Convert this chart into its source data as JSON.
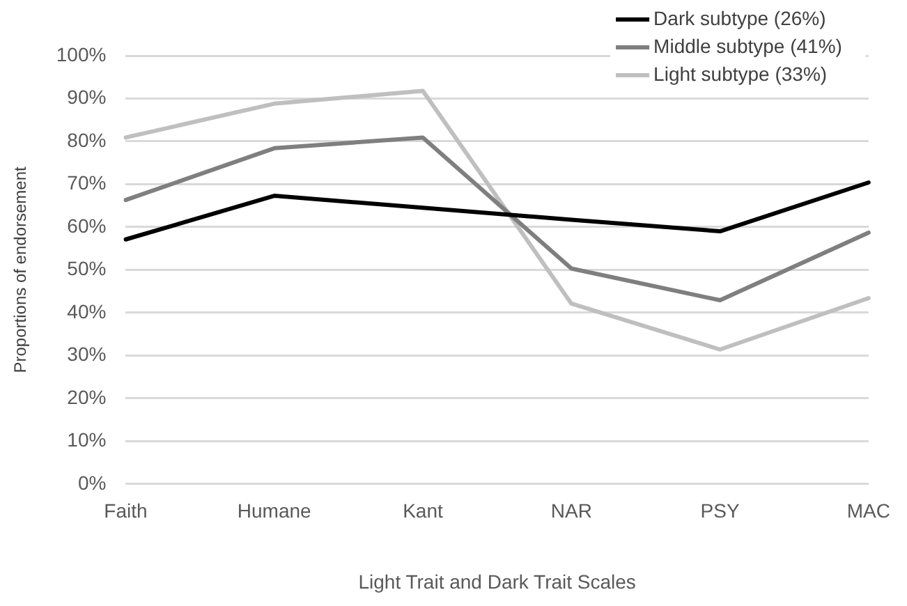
{
  "chart_data": {
    "type": "line",
    "xlabel": "Light Trait and Dark Trait Scales",
    "ylabel": "Proportions of endorsement",
    "categories": [
      "Faith",
      "Humane",
      "Kant",
      "NAR",
      "PSY",
      "MAC"
    ],
    "series": [
      {
        "name": "Dark subtype (26%)",
        "color": "#000000",
        "values": [
          57.1,
          67.3,
          64.5,
          61.7,
          59.0,
          70.4
        ]
      },
      {
        "name": "Middle subtype (41%)",
        "color": "#7f7f7f",
        "values": [
          66.3,
          78.4,
          80.9,
          50.3,
          42.9,
          58.7
        ]
      },
      {
        "name": "Light subtype (33%)",
        "color": "#bfbfbf",
        "values": [
          80.9,
          88.8,
          91.8,
          42.1,
          31.4,
          43.4
        ]
      }
    ],
    "ylim": [
      0,
      100
    ],
    "yticks": [
      {
        "value": 0,
        "label": "0%"
      },
      {
        "value": 10,
        "label": "10%"
      },
      {
        "value": 20,
        "label": "20%"
      },
      {
        "value": 30,
        "label": "30%"
      },
      {
        "value": 40,
        "label": "40%"
      },
      {
        "value": 50,
        "label": "50%"
      },
      {
        "value": 60,
        "label": "60%"
      },
      {
        "value": 70,
        "label": "70%"
      },
      {
        "value": 80,
        "label": "80%"
      },
      {
        "value": 90,
        "label": "90%"
      },
      {
        "value": 100,
        "label": "100%"
      }
    ],
    "grid": "y",
    "legend": "top right",
    "marker": "none",
    "line_style": "solid"
  }
}
